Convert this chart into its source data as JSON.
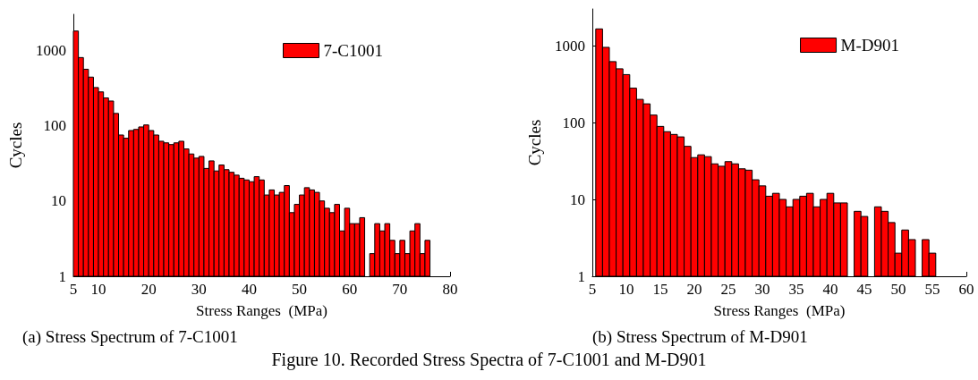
{
  "chart_data": [
    {
      "type": "histogram",
      "title": "(a) Stress Spectrum of 7-C1001",
      "xlabel": "Stress Ranges  (MPa)",
      "ylabel": "Cycles",
      "annotations": [
        "Figure 10. Recorded Stress Spectra of 7-C1001 and M-D901"
      ],
      "bins": [
        5,
        6,
        7,
        8,
        9,
        10,
        11,
        12,
        13,
        14,
        15,
        16,
        17,
        18,
        19,
        20,
        21,
        22,
        23,
        24,
        25,
        26,
        27,
        28,
        29,
        30,
        31,
        32,
        33,
        34,
        35,
        36,
        37,
        38,
        39,
        40,
        41,
        42,
        43,
        44,
        45,
        46,
        47,
        48,
        49,
        50,
        51,
        52,
        53,
        54,
        55,
        56,
        57,
        58,
        59,
        60,
        61,
        62,
        63,
        64,
        65,
        66,
        67,
        68,
        69,
        70,
        71,
        72,
        73,
        74,
        75,
        76
      ],
      "series": [
        {
          "name": "7-C1001",
          "color": "#ff0000",
          "values": [
            1800,
            800,
            560,
            440,
            320,
            280,
            233,
            212,
            145,
            75,
            68,
            86,
            89,
            96,
            102,
            86,
            75,
            62,
            59,
            56,
            59,
            62,
            49,
            42,
            37,
            39,
            27,
            34,
            25,
            30,
            26,
            24,
            22,
            20,
            19,
            18,
            21,
            19,
            12,
            14,
            12,
            13,
            16,
            7,
            9,
            12,
            15,
            14,
            13,
            10,
            8,
            7,
            9,
            4,
            8,
            5,
            5,
            6,
            null,
            2,
            5,
            4,
            5,
            3,
            2,
            3,
            2,
            4,
            5,
            2,
            3
          ]
        }
      ],
      "xlim": [
        5,
        80
      ],
      "xticks": [
        5,
        10,
        20,
        30,
        40,
        50,
        60,
        70,
        80
      ],
      "ylim": [
        1,
        3000
      ],
      "yticks": [
        1,
        10,
        100,
        1000
      ],
      "log": "y",
      "grid": false,
      "legend": "top right"
    },
    {
      "type": "histogram",
      "title": "(b) Stress Spectrum of M-D901",
      "xlabel": "Stress Ranges  (MPa)",
      "ylabel": "Cycles",
      "bins": [
        5.5,
        6.5,
        7.5,
        8.5,
        9.5,
        10.5,
        11.5,
        12.5,
        13.5,
        14.5,
        15.5,
        16.5,
        17.5,
        18.5,
        19.5,
        20.5,
        21.5,
        22.5,
        23.5,
        24.5,
        25.5,
        26.5,
        27.5,
        28.5,
        29.5,
        30.5,
        31.5,
        32.5,
        33.5,
        34.5,
        35.5,
        36.5,
        37.5,
        38.5,
        39.5,
        40.5,
        41.5,
        42.5,
        43.5,
        44.5,
        45.5,
        46.5,
        47.5,
        48.5,
        49.5,
        50.5,
        51.5,
        52.5,
        53.5,
        54.5,
        55.5
      ],
      "series": [
        {
          "name": "M-D901",
          "color": "#ff0000",
          "values": [
            1650,
            950,
            620,
            500,
            420,
            280,
            200,
            175,
            125,
            89,
            76,
            70,
            65,
            49,
            35,
            38,
            36,
            29,
            27,
            31,
            29,
            25,
            24,
            18,
            15,
            11,
            12,
            10,
            8,
            10,
            11,
            12,
            8,
            10,
            12,
            9,
            9,
            null,
            7,
            6,
            null,
            8,
            7,
            5,
            2,
            4,
            3,
            null,
            3,
            2
          ]
        }
      ],
      "xlim": [
        5,
        60
      ],
      "xticks": [
        5,
        10,
        15,
        20,
        25,
        30,
        35,
        40,
        45,
        50,
        55,
        60
      ],
      "ylim": [
        1,
        3000
      ],
      "yticks": [
        1,
        10,
        100,
        1000
      ],
      "log": "y",
      "grid": false,
      "legend": "top right"
    }
  ]
}
